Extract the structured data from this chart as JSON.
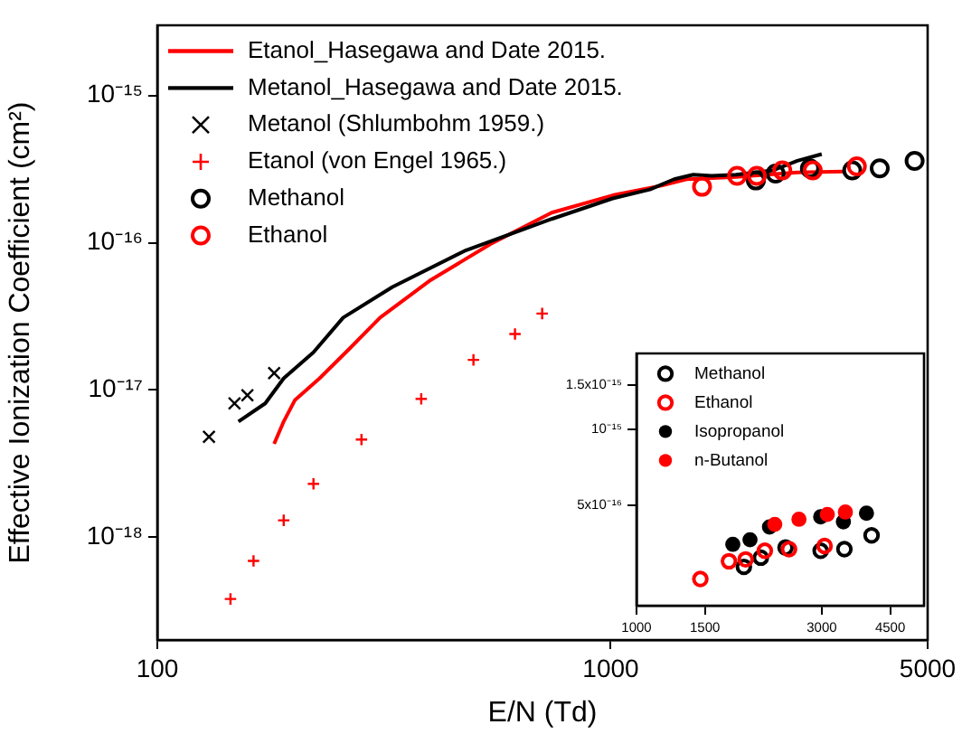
{
  "chart_data": [
    {
      "type": "line",
      "xlabel": "E/N (Td)",
      "ylabel": "Effective Ionization Coefficient (cm²)",
      "log": "xy",
      "xlim": [
        100,
        5000
      ],
      "ylim": [
        2e-19,
        3e-15
      ],
      "xticks": [
        100,
        1000,
        5000
      ],
      "yticks": [
        {
          "value": 1e-18,
          "label": "10⁻¹⁸"
        },
        {
          "value": 1e-17,
          "label": "10⁻¹⁷"
        },
        {
          "value": 1e-16,
          "label": "10⁻¹⁶"
        },
        {
          "value": 1e-15,
          "label": "10⁻¹⁵"
        }
      ],
      "grid": false,
      "legend": "top left",
      "series": [
        {
          "name": "Etanol_Hasegawa and Date 2015.",
          "type": "line",
          "marker": "none",
          "color": "#ff0000",
          "x": [
            181,
            190,
            201,
            228,
            265,
            310,
            398,
            543,
            741,
            1010,
            1300,
            1470,
            1890,
            2580,
            3250
          ],
          "values": [
            4.3e-18,
            6.1e-18,
            8.5e-18,
            1.2e-17,
            1.9e-17,
            3.1e-17,
            5.5e-17,
            9.8e-17,
            1.6e-16,
            2.1e-16,
            2.45e-16,
            2.7e-16,
            2.8e-16,
            3e-16,
            3.05e-16
          ]
        },
        {
          "name": "Metanol_Hasegawa and Date 2015.",
          "type": "line",
          "marker": "none",
          "color": "#000000",
          "x": [
            151,
            173,
            190,
            221,
            257,
            330,
            480,
            741,
            1010,
            1220,
            1380,
            1520,
            1670,
            1890,
            2280,
            2580,
            2920
          ],
          "values": [
            6.1e-18,
            8.1e-18,
            1.2e-17,
            1.8e-17,
            3.1e-17,
            5e-17,
            8.9e-17,
            1.45e-16,
            2e-16,
            2.3e-16,
            2.7e-16,
            2.9e-16,
            2.85e-16,
            2.9e-16,
            3.1e-16,
            3.6e-16,
            4e-16
          ]
        },
        {
          "name": "Metanol (Shlumbohm 1959.)",
          "type": "scatter",
          "marker": "x",
          "color": "#000000",
          "x": [
            130,
            148,
            158,
            181
          ],
          "values": [
            4.8e-18,
            8.1e-18,
            9.2e-18,
            1.3e-17
          ]
        },
        {
          "name": "Etanol (von Engel 1965.)",
          "type": "scatter",
          "marker": "cross",
          "color": "#ff0000",
          "x": [
            145,
            163,
            190,
            221,
            282,
            382,
            498,
            615,
            706
          ],
          "values": [
            3.8e-19,
            6.9e-19,
            1.3e-18,
            2.3e-18,
            4.6e-18,
            8.7e-18,
            1.6e-17,
            2.4e-17,
            3.3e-17
          ]
        },
        {
          "name": "Methanol",
          "type": "scatter",
          "marker": "open_circle",
          "color": "#000000",
          "x": [
            2090,
            2310,
            2750,
            3410,
            3920,
            4680
          ],
          "values": [
            2.65e-16,
            2.95e-16,
            3.2e-16,
            3.1e-16,
            3.2e-16,
            3.6e-16
          ]
        },
        {
          "name": "Ethanol",
          "type": "scatter",
          "marker": "open_circle",
          "color": "#ff0000",
          "x": [
            1590,
            1900,
            2100,
            2390,
            2790,
            3490
          ],
          "values": [
            2.4e-16,
            2.85e-16,
            2.85e-16,
            3.1e-16,
            3.1e-16,
            3.3e-16
          ]
        }
      ]
    },
    {
      "type": "scatter",
      "log": "xy",
      "xlim": [
        1000,
        5500
      ],
      "ylim": [
        2e-16,
        2e-15
      ],
      "xticks": [
        1000,
        1500,
        3000,
        4500
      ],
      "yticks": [
        {
          "value": 5e-16,
          "label": "5x10⁻¹⁶"
        },
        {
          "value": 1e-15,
          "label": "10⁻¹⁵"
        },
        {
          "value": 1.5e-15,
          "label": "1.5x10⁻¹⁵"
        }
      ],
      "grid": false,
      "legend": "top left",
      "series": [
        {
          "name": "Methanol",
          "marker": "open_circle",
          "color": "#000000",
          "x": [
            1890,
            2090,
            2420,
            2980,
            3430,
            4030
          ],
          "values": [
            2.85e-16,
            3.1e-16,
            3.4e-16,
            3.3e-16,
            3.35e-16,
            3.8e-16
          ]
        },
        {
          "name": "Ethanol",
          "marker": "open_circle",
          "color": "#ff0000",
          "x": [
            1460,
            1730,
            1910,
            2140,
            2470,
            3050
          ],
          "values": [
            2.55e-16,
            3e-16,
            3.05e-16,
            3.3e-16,
            3.35e-16,
            3.45e-16
          ]
        },
        {
          "name": "Isopropanol",
          "marker": "circle",
          "color": "#000000",
          "x": [
            1770,
            1960,
            2200,
            2980,
            3410,
            3910
          ],
          "values": [
            3.5e-16,
            3.65e-16,
            4.1e-16,
            4.5e-16,
            4.3e-16,
            4.65e-16
          ]
        },
        {
          "name": "n-Butanol",
          "marker": "circle",
          "color": "#ff0000",
          "x": [
            2270,
            2620,
            3100,
            3450
          ],
          "values": [
            4.2e-16,
            4.4e-16,
            4.6e-16,
            4.7e-16
          ]
        }
      ]
    }
  ]
}
